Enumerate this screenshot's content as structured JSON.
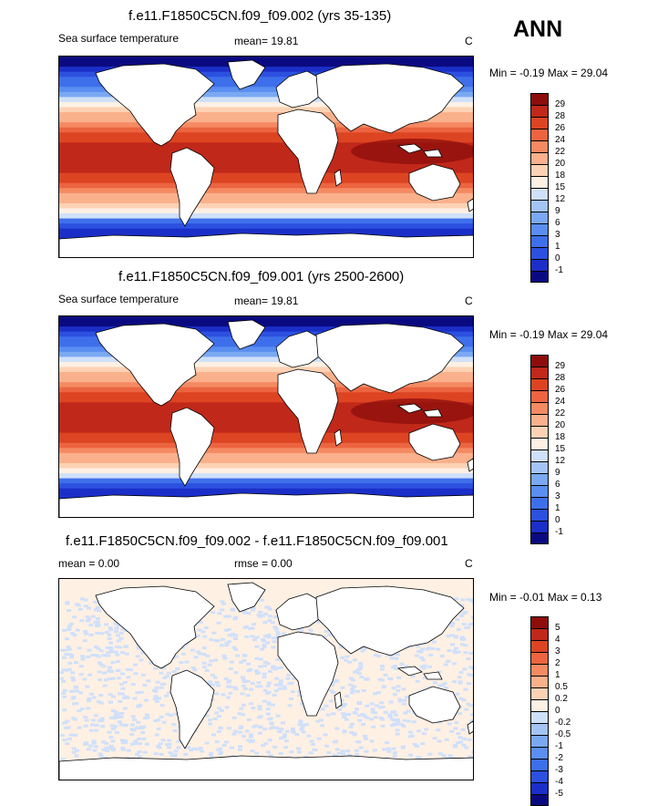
{
  "season": "ANN",
  "panels": [
    {
      "title": "f.e11.F1850C5CN.f09_f09.002 (yrs 35-135)",
      "left_label": "Sea surface temperature",
      "center_label": "mean=  19.81",
      "unit": "C",
      "minmax": "Min =  -0.19 Max =  29.04",
      "levels": [
        "-1",
        "0",
        "1",
        "3",
        "6",
        "9",
        "12",
        "15",
        "18",
        "20",
        "22",
        "24",
        "26",
        "28",
        "29"
      ],
      "colors": [
        "#0a0a80",
        "#1b2fc8",
        "#2c50e0",
        "#3e6fea",
        "#5a8ef0",
        "#7aa8f2",
        "#a4c4f6",
        "#cfe0fa",
        "#fff0e4",
        "#fdd2b4",
        "#fbb08c",
        "#f58a62",
        "#ec6440",
        "#dd4422",
        "#c0281a",
        "#8c0d0c"
      ]
    },
    {
      "title": "f.e11.F1850C5CN.f09_f09.001 (yrs 2500-2600)",
      "left_label": "Sea surface temperature",
      "center_label": "mean=  19.81",
      "unit": "C",
      "minmax": "Min =  -0.19 Max =  29.04",
      "levels": [
        "-1",
        "0",
        "1",
        "3",
        "6",
        "9",
        "12",
        "15",
        "18",
        "20",
        "22",
        "24",
        "26",
        "28",
        "29"
      ],
      "colors": [
        "#0a0a80",
        "#1b2fc8",
        "#2c50e0",
        "#3e6fea",
        "#5a8ef0",
        "#7aa8f2",
        "#a4c4f6",
        "#cfe0fa",
        "#fff0e4",
        "#fdd2b4",
        "#fbb08c",
        "#f58a62",
        "#ec6440",
        "#dd4422",
        "#c0281a",
        "#8c0d0c"
      ]
    },
    {
      "title": "f.e11.F1850C5CN.f09_f09.002 - f.e11.F1850C5CN.f09_f09.001",
      "left_label": "mean =   0.00",
      "center_label": "rmse =   0.00",
      "unit": "C",
      "minmax": "Min =  -0.01 Max =   0.13",
      "levels": [
        "-5",
        "-4",
        "-3",
        "-2",
        "-1",
        "-0.5",
        "-0.2",
        "0",
        "0.2",
        "0.5",
        "1",
        "2",
        "3",
        "4",
        "5"
      ],
      "colors": [
        "#0a0a80",
        "#1b2fc8",
        "#2c50e0",
        "#3e6fea",
        "#5a8ef0",
        "#7aa8f2",
        "#a4c4f6",
        "#cfe0fa",
        "#fff0e4",
        "#fdd2b4",
        "#fbb08c",
        "#f58a62",
        "#ec6440",
        "#dd4422",
        "#c0281a",
        "#8c0d0c"
      ]
    }
  ],
  "chart_data": [
    {
      "type": "heatmap",
      "title": "f.e11.F1850C5CN.f09_f09.002 (yrs 35-135)",
      "variable": "Sea surface temperature",
      "units": "C",
      "mean": 19.81,
      "min": -0.19,
      "max": 29.04,
      "contour_levels": [
        -1,
        0,
        1,
        3,
        6,
        9,
        12,
        15,
        18,
        20,
        22,
        24,
        26,
        28,
        29
      ]
    },
    {
      "type": "heatmap",
      "title": "f.e11.F1850C5CN.f09_f09.001 (yrs 2500-2600)",
      "variable": "Sea surface temperature",
      "units": "C",
      "mean": 19.81,
      "min": -0.19,
      "max": 29.04,
      "contour_levels": [
        -1,
        0,
        1,
        3,
        6,
        9,
        12,
        15,
        18,
        20,
        22,
        24,
        26,
        28,
        29
      ]
    },
    {
      "type": "heatmap",
      "title": "f.e11.F1850C5CN.f09_f09.002 - f.e11.F1850C5CN.f09_f09.001",
      "units": "C",
      "mean": 0.0,
      "rmse": 0.0,
      "min": -0.01,
      "max": 0.13,
      "contour_levels": [
        -5,
        -4,
        -3,
        -2,
        -1,
        -0.5,
        -0.2,
        0,
        0.2,
        0.5,
        1,
        2,
        3,
        4,
        5
      ]
    }
  ]
}
